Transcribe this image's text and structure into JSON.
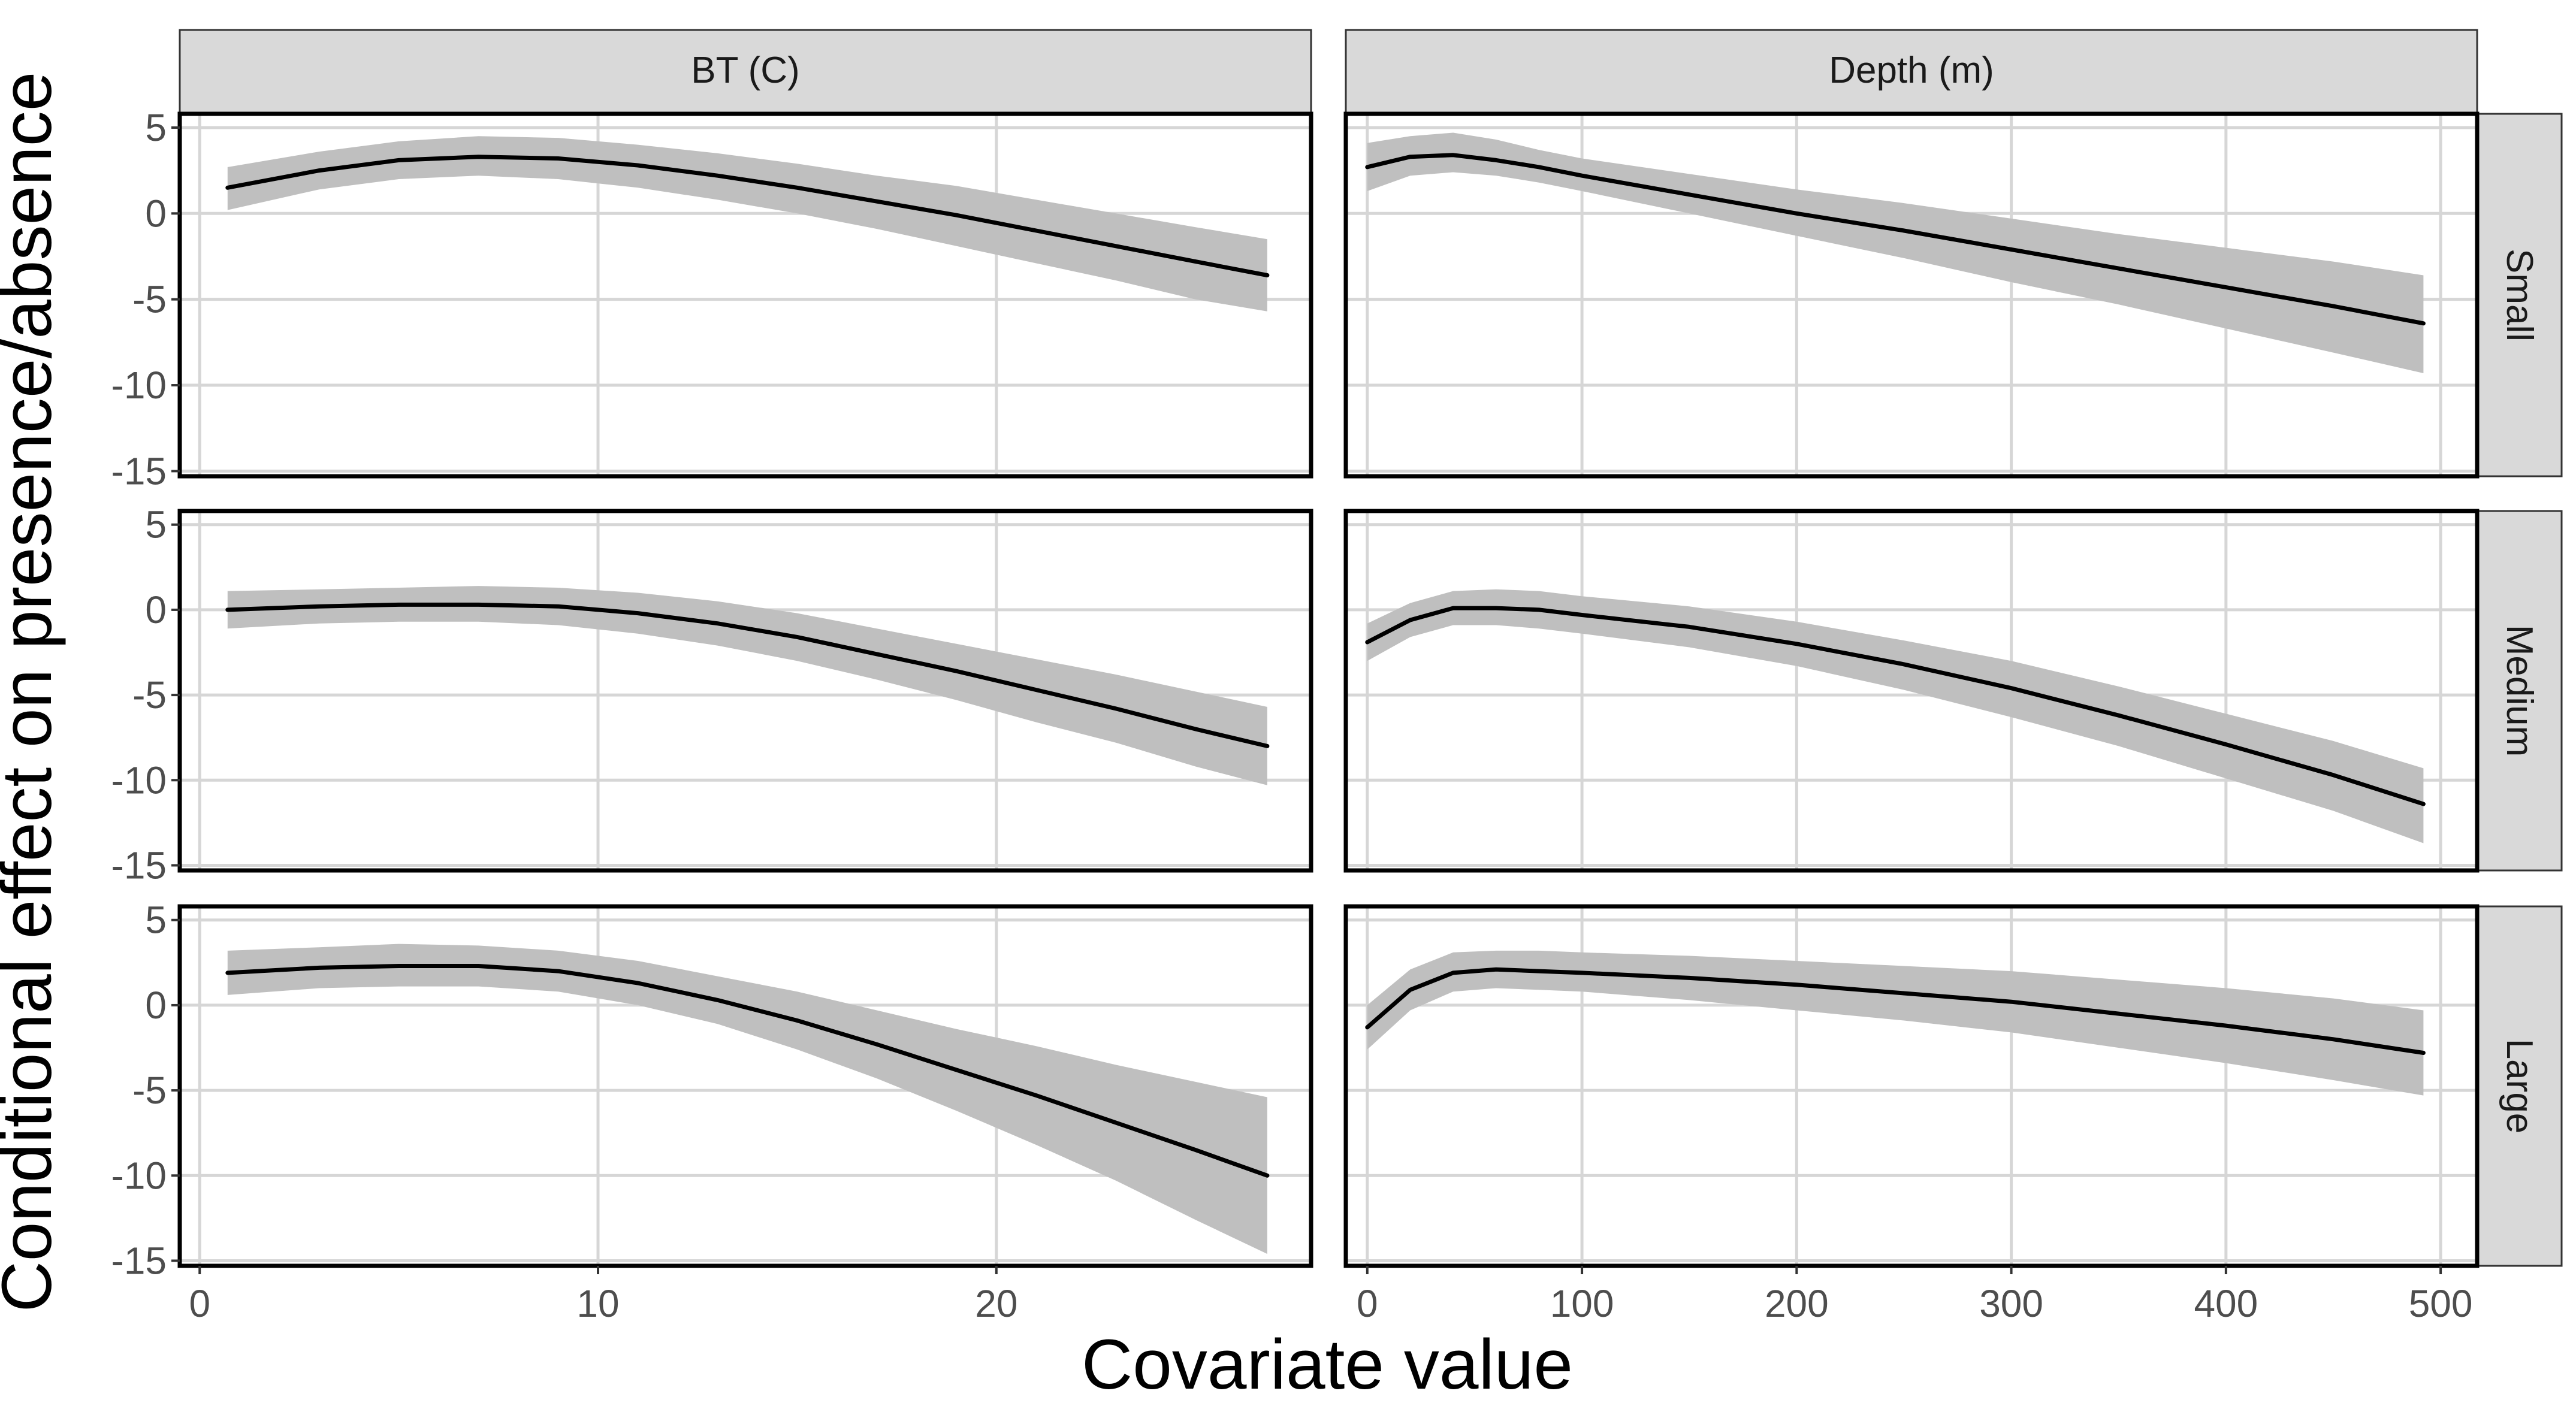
{
  "chart_data": {
    "type": "line",
    "title": "",
    "xlabel": "Covariate value",
    "ylabel": "Conditional effect on presence/absence",
    "ylim": [
      -15,
      5
    ],
    "y_ticks": [
      "5",
      "0",
      "-5",
      "-10",
      "-15"
    ],
    "grid": true,
    "columns": [
      {
        "label": "BT (C)",
        "xlim": [
          -0.5,
          27.9
        ],
        "x_ticks": [
          0,
          10,
          20
        ],
        "x_tick_labels": [
          "0",
          "10",
          "20"
        ]
      },
      {
        "label": "Depth (m)",
        "xlim": [
          -10,
          517
        ],
        "x_ticks": [
          0,
          100,
          200,
          300,
          400,
          500
        ],
        "x_tick_labels": [
          "0",
          "100",
          "200",
          "300",
          "400",
          "500"
        ]
      }
    ],
    "rows": [
      "Small",
      "Medium",
      "Large"
    ],
    "panels": [
      {
        "row": "Small",
        "column": "BT (C)",
        "x": [
          0.7,
          3,
          5,
          7,
          9,
          11,
          13,
          15,
          17,
          19,
          21,
          23,
          25,
          26.8
        ],
        "y": [
          1.5,
          2.5,
          3.1,
          3.3,
          3.2,
          2.8,
          2.2,
          1.5,
          0.7,
          -0.1,
          -1.0,
          -1.9,
          -2.8,
          -3.6
        ],
        "lower": [
          0.2,
          1.4,
          2.0,
          2.2,
          2.0,
          1.5,
          0.8,
          0.0,
          -0.9,
          -1.9,
          -2.9,
          -3.9,
          -5.0,
          -5.7
        ],
        "upper": [
          2.7,
          3.6,
          4.2,
          4.5,
          4.4,
          4.0,
          3.5,
          2.9,
          2.2,
          1.6,
          0.8,
          0.0,
          -0.8,
          -1.5
        ]
      },
      {
        "row": "Small",
        "column": "Depth (m)",
        "x": [
          0,
          20,
          40,
          60,
          80,
          100,
          150,
          200,
          250,
          300,
          350,
          400,
          450,
          492
        ],
        "y": [
          2.7,
          3.3,
          3.4,
          3.1,
          2.7,
          2.2,
          1.1,
          0.0,
          -1.0,
          -2.1,
          -3.2,
          -4.3,
          -5.4,
          -6.4
        ],
        "lower": [
          1.3,
          2.2,
          2.4,
          2.2,
          1.8,
          1.3,
          0.0,
          -1.3,
          -2.6,
          -4.0,
          -5.3,
          -6.7,
          -8.1,
          -9.3
        ],
        "upper": [
          4.1,
          4.5,
          4.7,
          4.3,
          3.7,
          3.2,
          2.3,
          1.4,
          0.6,
          -0.3,
          -1.2,
          -2.0,
          -2.8,
          -3.6
        ]
      },
      {
        "row": "Medium",
        "column": "BT (C)",
        "x": [
          0.7,
          3,
          5,
          7,
          9,
          11,
          13,
          15,
          17,
          19,
          21,
          23,
          25,
          26.8
        ],
        "y": [
          0.0,
          0.2,
          0.3,
          0.3,
          0.2,
          -0.2,
          -0.8,
          -1.6,
          -2.6,
          -3.6,
          -4.7,
          -5.8,
          -7.0,
          -8.0
        ],
        "lower": [
          -1.1,
          -0.8,
          -0.7,
          -0.7,
          -0.9,
          -1.4,
          -2.1,
          -3.0,
          -4.1,
          -5.3,
          -6.6,
          -7.8,
          -9.2,
          -10.3
        ],
        "upper": [
          1.1,
          1.2,
          1.3,
          1.4,
          1.3,
          1.0,
          0.5,
          -0.2,
          -1.1,
          -2.0,
          -2.9,
          -3.8,
          -4.8,
          -5.7
        ]
      },
      {
        "row": "Medium",
        "column": "Depth (m)",
        "x": [
          0,
          20,
          40,
          60,
          80,
          100,
          150,
          200,
          250,
          300,
          350,
          400,
          450,
          492
        ],
        "y": [
          -1.9,
          -0.6,
          0.1,
          0.1,
          0.0,
          -0.3,
          -1.0,
          -2.0,
          -3.2,
          -4.6,
          -6.2,
          -7.9,
          -9.7,
          -11.4
        ],
        "lower": [
          -3.0,
          -1.6,
          -0.9,
          -0.9,
          -1.1,
          -1.4,
          -2.2,
          -3.3,
          -4.7,
          -6.3,
          -8.0,
          -9.9,
          -11.8,
          -13.7
        ],
        "upper": [
          -0.8,
          0.4,
          1.1,
          1.2,
          1.1,
          0.8,
          0.2,
          -0.7,
          -1.8,
          -3.0,
          -4.5,
          -6.1,
          -7.7,
          -9.3
        ]
      },
      {
        "row": "Large",
        "column": "BT (C)",
        "x": [
          0.7,
          3,
          5,
          7,
          9,
          11,
          13,
          15,
          17,
          19,
          21,
          23,
          25,
          26.8
        ],
        "y": [
          1.9,
          2.2,
          2.3,
          2.3,
          2.0,
          1.3,
          0.3,
          -0.9,
          -2.3,
          -3.8,
          -5.3,
          -6.9,
          -8.5,
          -10.0
        ],
        "lower": [
          0.6,
          1.0,
          1.1,
          1.1,
          0.8,
          0.0,
          -1.1,
          -2.6,
          -4.3,
          -6.2,
          -8.2,
          -10.3,
          -12.6,
          -14.6
        ],
        "upper": [
          3.2,
          3.4,
          3.6,
          3.5,
          3.2,
          2.6,
          1.7,
          0.8,
          -0.3,
          -1.4,
          -2.4,
          -3.5,
          -4.5,
          -5.4
        ]
      },
      {
        "row": "Large",
        "column": "Depth (m)",
        "x": [
          0,
          20,
          40,
          60,
          80,
          100,
          150,
          200,
          250,
          300,
          350,
          400,
          450,
          492
        ],
        "y": [
          -1.3,
          0.9,
          1.9,
          2.1,
          2.0,
          1.9,
          1.6,
          1.2,
          0.7,
          0.2,
          -0.5,
          -1.2,
          -2.0,
          -2.8
        ],
        "lower": [
          -2.6,
          -0.3,
          0.8,
          1.0,
          0.9,
          0.8,
          0.3,
          -0.3,
          -0.9,
          -1.6,
          -2.5,
          -3.4,
          -4.4,
          -5.3
        ],
        "upper": [
          0.0,
          2.1,
          3.1,
          3.2,
          3.2,
          3.1,
          2.9,
          2.6,
          2.3,
          2.0,
          1.5,
          1.0,
          0.4,
          -0.3
        ]
      }
    ],
    "colors": {
      "line": "#000000",
      "ribbon": "#bfbfbf",
      "strip_fill": "#d9d9d9",
      "grid": "#d6d6d6",
      "border": "#000000",
      "tick_text": "#4d4d4d"
    }
  }
}
